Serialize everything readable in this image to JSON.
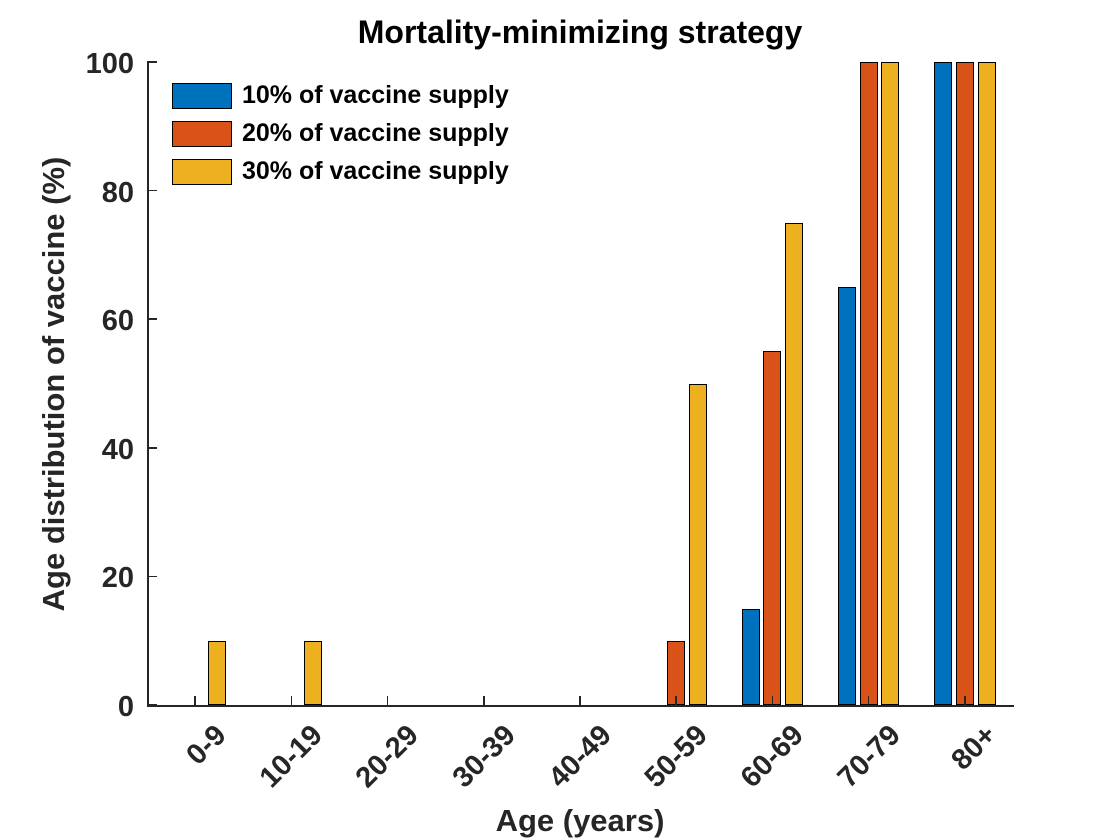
{
  "chart_data": {
    "type": "bar",
    "title": "Mortality-minimizing strategy",
    "xlabel": "Age (years)",
    "ylabel": "Age distribution of vaccine (%)",
    "categories": [
      "0-9",
      "10-19",
      "20-29",
      "30-39",
      "40-49",
      "50-59",
      "60-69",
      "70-79",
      "80+"
    ],
    "series": [
      {
        "name": "10% of vaccine supply",
        "color": "#0072BD",
        "values": [
          0,
          0,
          0,
          0,
          0,
          0,
          15,
          65,
          100
        ]
      },
      {
        "name": "20% of vaccine supply",
        "color": "#D95319",
        "values": [
          0,
          0,
          0,
          0,
          0,
          10,
          55,
          100,
          100
        ]
      },
      {
        "name": "30% of vaccine supply",
        "color": "#EDB120",
        "values": [
          10,
          10,
          0,
          0,
          0,
          50,
          75,
          100,
          100
        ]
      }
    ],
    "ylim": [
      0,
      100
    ],
    "yticks": [
      0,
      20,
      40,
      60,
      80,
      100
    ],
    "legend_position": "top-left",
    "legend_box": false,
    "grid": false,
    "bar_edge_color": "#000000",
    "axis_color": "#262626",
    "background_color": "#ffffff"
  }
}
